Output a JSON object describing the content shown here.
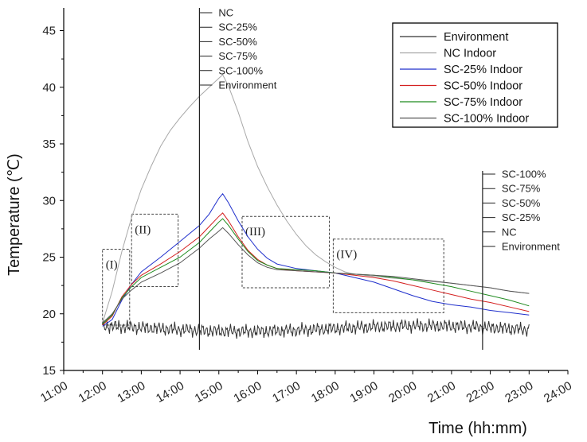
{
  "chart_data": {
    "type": "line",
    "title": "",
    "xlabel": "Time (hh:mm)",
    "ylabel": "Temperature (℃)",
    "xlim": [
      11,
      24
    ],
    "ylim": [
      15,
      47
    ],
    "x_ticks": [
      "11:00",
      "12:00",
      "13:00",
      "14:00",
      "15:00",
      "16:00",
      "17:00",
      "18:00",
      "19:00",
      "20:00",
      "21:00",
      "22:00",
      "23:00",
      "24:00"
    ],
    "y_ticks": [
      15,
      20,
      25,
      30,
      35,
      40,
      45
    ],
    "grid": false,
    "legend_position": "top-right",
    "legend": [
      "Environment",
      "NC Indoor",
      "SC-25% Indoor",
      "SC-50% Indoor",
      "SC-75% Indoor",
      "SC-100% Indoor"
    ],
    "series": [
      {
        "name": "Environment",
        "color": "#333333",
        "noisy": true,
        "points": [
          [
            12,
            18.8
          ],
          [
            13,
            18.7
          ],
          [
            14,
            18.6
          ],
          [
            15,
            18.9
          ],
          [
            16,
            18.7
          ],
          [
            17,
            18.6
          ],
          [
            18,
            18.7
          ],
          [
            19,
            18.6
          ],
          [
            20,
            18.7
          ],
          [
            21,
            18.6
          ],
          [
            22,
            18.6
          ],
          [
            23,
            18.6
          ]
        ]
      },
      {
        "name": "NC Indoor",
        "color": "#a8a8a8",
        "points": [
          [
            12,
            19.2
          ],
          [
            12.25,
            22
          ],
          [
            12.5,
            25.5
          ],
          [
            12.75,
            28.5
          ],
          [
            13,
            31
          ],
          [
            13.25,
            33
          ],
          [
            13.5,
            34.8
          ],
          [
            13.75,
            36.2
          ],
          [
            14,
            37.3
          ],
          [
            14.25,
            38.3
          ],
          [
            14.5,
            39.2
          ],
          [
            14.75,
            40
          ],
          [
            15,
            40.8
          ],
          [
            15.1,
            41.1
          ],
          [
            15.25,
            40.1
          ],
          [
            15.5,
            37.8
          ],
          [
            15.75,
            35.2
          ],
          [
            16,
            33
          ],
          [
            16.25,
            31.2
          ],
          [
            16.5,
            29.6
          ],
          [
            16.75,
            28.2
          ],
          [
            17,
            27
          ],
          [
            17.25,
            26
          ],
          [
            17.5,
            25.2
          ],
          [
            17.75,
            24.6
          ],
          [
            18,
            24.1
          ],
          [
            18.25,
            23.7
          ],
          [
            18.5,
            23.5
          ],
          [
            19,
            23.3
          ],
          [
            20,
            23
          ],
          [
            21,
            22.7
          ],
          [
            22,
            22.3
          ],
          [
            22.5,
            22
          ],
          [
            23,
            21.8
          ]
        ]
      },
      {
        "name": "SC-25% Indoor",
        "color": "#1f2fcc",
        "points": [
          [
            12,
            18.9
          ],
          [
            12.25,
            19.5
          ],
          [
            12.5,
            21.2
          ],
          [
            12.75,
            22.6
          ],
          [
            13,
            23.7
          ],
          [
            13.5,
            25
          ],
          [
            14,
            26.4
          ],
          [
            14.5,
            27.8
          ],
          [
            14.75,
            28.8
          ],
          [
            15,
            30.2
          ],
          [
            15.1,
            30.6
          ],
          [
            15.25,
            29.8
          ],
          [
            15.5,
            28.2
          ],
          [
            15.75,
            26.8
          ],
          [
            16,
            25.7
          ],
          [
            16.25,
            24.9
          ],
          [
            16.5,
            24.4
          ],
          [
            17,
            24
          ],
          [
            17.5,
            23.8
          ],
          [
            18,
            23.6
          ],
          [
            18.5,
            23.2
          ],
          [
            19,
            22.8
          ],
          [
            19.5,
            22.2
          ],
          [
            20,
            21.6
          ],
          [
            20.5,
            21.1
          ],
          [
            21,
            20.8
          ],
          [
            21.5,
            20.6
          ],
          [
            22,
            20.3
          ],
          [
            22.5,
            20.1
          ],
          [
            23,
            19.9
          ]
        ]
      },
      {
        "name": "SC-50% Indoor",
        "color": "#d42020",
        "points": [
          [
            12,
            19
          ],
          [
            12.25,
            19.8
          ],
          [
            12.5,
            21.5
          ],
          [
            12.75,
            22.6
          ],
          [
            13,
            23.4
          ],
          [
            13.5,
            24.4
          ],
          [
            14,
            25.5
          ],
          [
            14.5,
            26.8
          ],
          [
            14.75,
            27.7
          ],
          [
            15,
            28.6
          ],
          [
            15.1,
            28.9
          ],
          [
            15.25,
            28.2
          ],
          [
            15.5,
            26.8
          ],
          [
            15.75,
            25.6
          ],
          [
            16,
            24.8
          ],
          [
            16.25,
            24.3
          ],
          [
            16.5,
            24
          ],
          [
            17,
            23.8
          ],
          [
            17.5,
            23.7
          ],
          [
            18,
            23.6
          ],
          [
            18.5,
            23.4
          ],
          [
            19,
            23.2
          ],
          [
            19.5,
            22.9
          ],
          [
            20,
            22.5
          ],
          [
            20.5,
            22.1
          ],
          [
            21,
            21.7
          ],
          [
            21.5,
            21.3
          ],
          [
            22,
            21
          ],
          [
            22.5,
            20.6
          ],
          [
            23,
            20.2
          ]
        ]
      },
      {
        "name": "SC-75% Indoor",
        "color": "#1e8a1e",
        "points": [
          [
            12,
            19.1
          ],
          [
            12.25,
            19.9
          ],
          [
            12.5,
            21.4
          ],
          [
            12.75,
            22.4
          ],
          [
            13,
            23.2
          ],
          [
            13.5,
            24.1
          ],
          [
            14,
            25
          ],
          [
            14.5,
            26.3
          ],
          [
            14.75,
            27.2
          ],
          [
            15,
            28.1
          ],
          [
            15.1,
            28.4
          ],
          [
            15.25,
            27.8
          ],
          [
            15.5,
            26.6
          ],
          [
            15.75,
            25.5
          ],
          [
            16,
            24.7
          ],
          [
            16.25,
            24.3
          ],
          [
            16.5,
            24
          ],
          [
            17,
            23.9
          ],
          [
            17.5,
            23.8
          ],
          [
            18,
            23.6
          ],
          [
            18.5,
            23.5
          ],
          [
            19,
            23.4
          ],
          [
            19.5,
            23.2
          ],
          [
            20,
            23
          ],
          [
            20.5,
            22.7
          ],
          [
            21,
            22.4
          ],
          [
            21.5,
            22
          ],
          [
            22,
            21.6
          ],
          [
            22.5,
            21.2
          ],
          [
            23,
            20.7
          ]
        ]
      },
      {
        "name": "SC-100% Indoor",
        "color": "#555555",
        "points": [
          [
            12,
            19.2
          ],
          [
            12.25,
            20
          ],
          [
            12.5,
            21.3
          ],
          [
            12.75,
            22.1
          ],
          [
            13,
            22.8
          ],
          [
            13.5,
            23.6
          ],
          [
            14,
            24.5
          ],
          [
            14.5,
            25.8
          ],
          [
            14.75,
            26.6
          ],
          [
            15,
            27.3
          ],
          [
            15.1,
            27.6
          ],
          [
            15.25,
            27.1
          ],
          [
            15.5,
            26.1
          ],
          [
            15.75,
            25.2
          ],
          [
            16,
            24.5
          ],
          [
            16.25,
            24.1
          ],
          [
            16.5,
            23.9
          ],
          [
            17,
            23.8
          ],
          [
            17.5,
            23.7
          ],
          [
            18,
            23.6
          ],
          [
            18.5,
            23.5
          ],
          [
            19,
            23.4
          ],
          [
            19.5,
            23.3
          ],
          [
            20,
            23.1
          ],
          [
            20.5,
            22.9
          ],
          [
            21,
            22.7
          ],
          [
            21.5,
            22.5
          ],
          [
            22,
            22.3
          ],
          [
            22.5,
            22
          ],
          [
            23,
            21.8
          ]
        ]
      }
    ],
    "vertical_markers": [
      {
        "x": 14.5,
        "labels": [
          "NC",
          "SC-25%",
          "SC-50%",
          "SC-75%",
          "SC-100%",
          "Environment"
        ]
      },
      {
        "x": 21.8,
        "labels": [
          "SC-100%",
          "SC-75%",
          "SC-50%",
          "SC-25%",
          "NC",
          "Environment"
        ]
      }
    ],
    "regions": [
      {
        "label": "(I)",
        "x0": 12.0,
        "x1": 12.7,
        "y0": 19.0,
        "y1": 25.7
      },
      {
        "label": "(II)",
        "x0": 12.75,
        "x1": 13.95,
        "y0": 22.4,
        "y1": 28.8
      },
      {
        "label": "(III)",
        "x0": 15.6,
        "x1": 17.85,
        "y0": 22.3,
        "y1": 28.6
      },
      {
        "label": "(IV)",
        "x0": 17.95,
        "x1": 20.8,
        "y0": 20.1,
        "y1": 26.6
      }
    ]
  }
}
